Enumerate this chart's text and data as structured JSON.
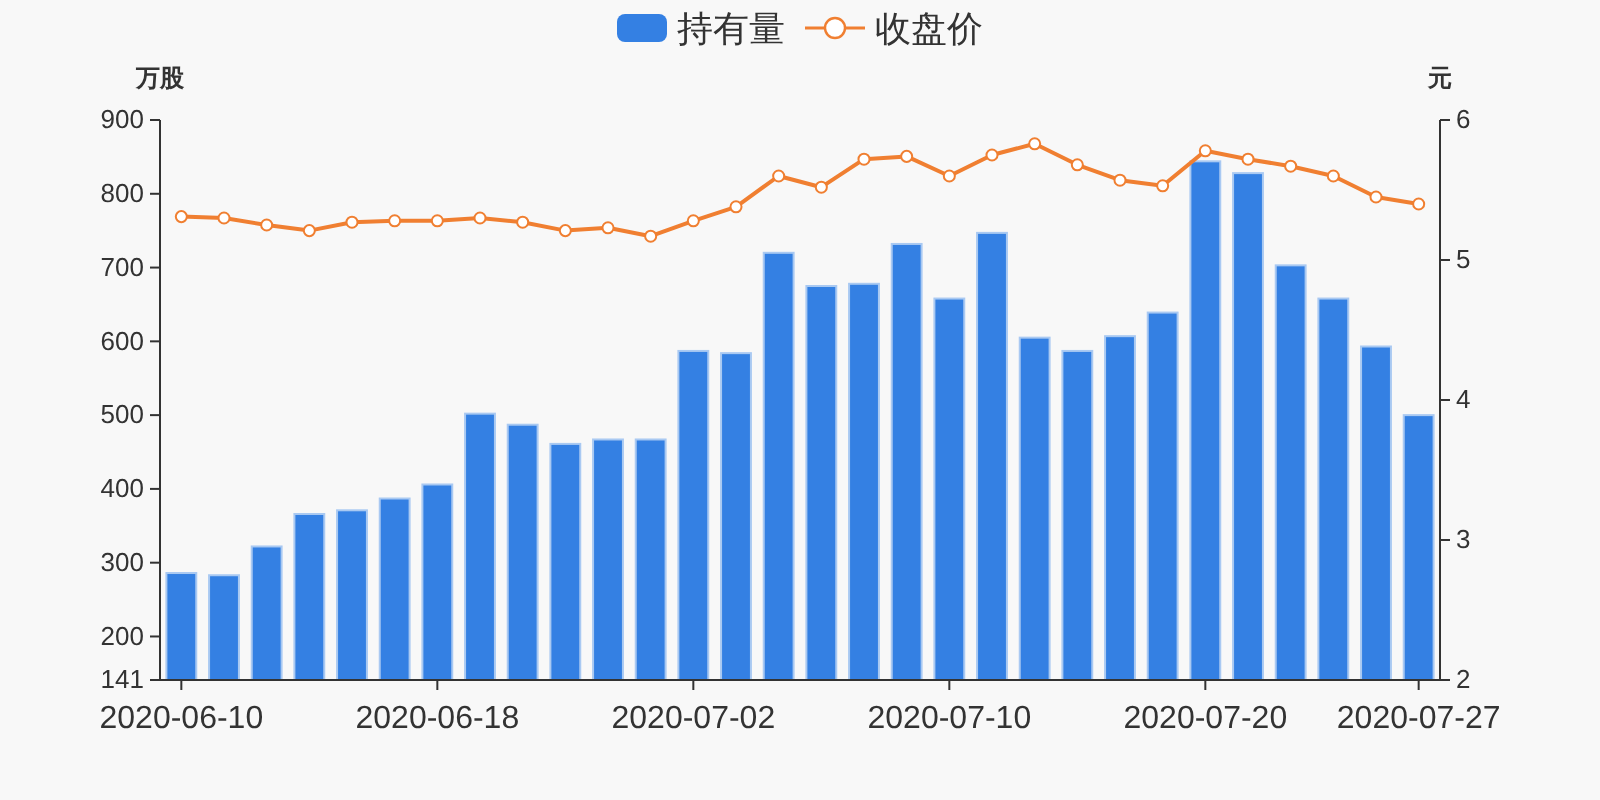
{
  "chart_data": {
    "type": "bar",
    "categories": [
      "2020-06-10",
      null,
      null,
      null,
      null,
      null,
      "2020-06-18",
      null,
      null,
      null,
      null,
      null,
      "2020-07-02",
      null,
      null,
      null,
      null,
      null,
      "2020-07-10",
      null,
      null,
      null,
      null,
      null,
      "2020-07-20",
      null,
      null,
      null,
      null,
      "2020-07-27"
    ],
    "series": [
      {
        "name": "持有量",
        "color": "#3480e3",
        "values": [
          286,
          283,
          322,
          366,
          371,
          387,
          406,
          502,
          487,
          461,
          467,
          467,
          587,
          584,
          720,
          675,
          678,
          732,
          658,
          747,
          605,
          587,
          607,
          639,
          844,
          828,
          703,
          658,
          593,
          500
        ]
      },
      {
        "name": "收盘价",
        "type": "line",
        "axis": "y2",
        "color": "#f07f31",
        "values": [
          5.31,
          5.3,
          5.25,
          5.21,
          5.27,
          5.28,
          5.28,
          5.3,
          5.27,
          5.21,
          5.23,
          5.17,
          5.28,
          5.38,
          5.6,
          5.52,
          5.72,
          5.74,
          5.6,
          5.75,
          5.83,
          5.68,
          5.57,
          5.53,
          5.78,
          5.72,
          5.67,
          5.6,
          5.45,
          5.4
        ]
      }
    ],
    "ylabel": "万股",
    "y2label": "元",
    "ylim": [
      141,
      900
    ],
    "yticks": [
      141,
      200,
      300,
      400,
      500,
      600,
      700,
      800,
      900
    ],
    "y2lim": [
      2,
      6
    ],
    "y2ticks": [
      2,
      3,
      4,
      5,
      6
    ],
    "legend": "top",
    "marker": "circle"
  }
}
